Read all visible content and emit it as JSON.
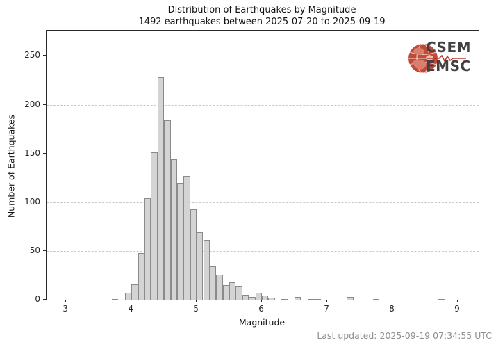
{
  "header": {
    "title": "Distribution of Earthquakes by Magnitude",
    "subtitle": "1492 earthquakes between 2025-07-20 to 2025-09-19"
  },
  "logo": {
    "top_text": "CSEM",
    "bottom_text": "EMSC",
    "globe_color": "#c24a38",
    "land_color": "#d87f6e",
    "text_color": "#414141",
    "squiggle_color": "#c0392b"
  },
  "footer": {
    "last_updated": "Last updated: 2025-09-19 07:34:55 UTC"
  },
  "chart_data": {
    "type": "bar",
    "title": "Distribution of Earthquakes by Magnitude",
    "subtitle": "1492 earthquakes between 2025-07-20 to 2025-09-19",
    "xlabel": "Magnitude",
    "ylabel": "Number of Earthquakes",
    "total_earthquakes": 1492,
    "bin_start": 3.7,
    "bin_width": 0.1,
    "counts": [
      1,
      0,
      7,
      16,
      48,
      104,
      151,
      228,
      184,
      144,
      120,
      127,
      93,
      69,
      61,
      34,
      26,
      15,
      18,
      14,
      5,
      3,
      7,
      4,
      2,
      0,
      1,
      0,
      3,
      0,
      1,
      1,
      0,
      0,
      0,
      0,
      3,
      0,
      0,
      0,
      1,
      0,
      0,
      0,
      0,
      0,
      0,
      0,
      0,
      0,
      1
    ],
    "xticks": [
      3,
      4,
      5,
      6,
      7,
      8,
      9
    ],
    "yticks": [
      0,
      50,
      100,
      150,
      200,
      250
    ],
    "xlim": [
      2.7,
      9.32
    ],
    "ylim": [
      0,
      276
    ],
    "grid": {
      "axis": "y",
      "style": "dashed",
      "color": "#c9c9c9",
      "behind_bars": true
    },
    "colors": {
      "bar_fill": "#d4d4d4",
      "bar_edge": "#8a8a8a"
    },
    "legend": null
  }
}
